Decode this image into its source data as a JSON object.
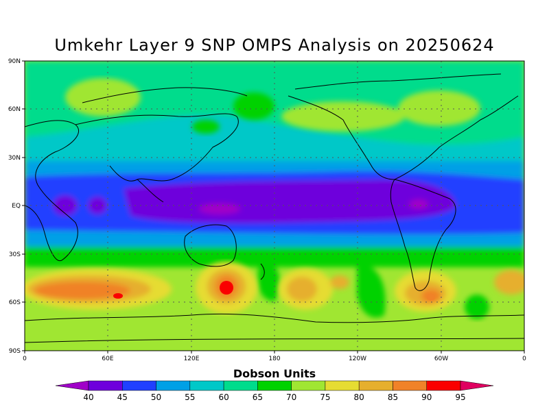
{
  "title": "Umkehr Layer 9 SNP OMPS Analysis on 20250624",
  "map": {
    "lat_labels": [
      "90N",
      "60N",
      "30N",
      "EQ",
      "30S",
      "60S",
      "90S"
    ],
    "lon_labels": [
      "0",
      "60E",
      "120E",
      "180",
      "120W",
      "60W",
      "0"
    ]
  },
  "colorbar": {
    "title": "Dobson Units",
    "levels": [
      "40",
      "45",
      "50",
      "55",
      "60",
      "65",
      "70",
      "75",
      "80",
      "85",
      "90",
      "95"
    ],
    "colors": [
      "#a000c8",
      "#6e00dc",
      "#2040ff",
      "#00a0e6",
      "#00c8c8",
      "#00dc8c",
      "#00d200",
      "#a0e632",
      "#e6dc32",
      "#e6af2d",
      "#f08228",
      "#fa0000",
      "#e00060"
    ]
  }
}
